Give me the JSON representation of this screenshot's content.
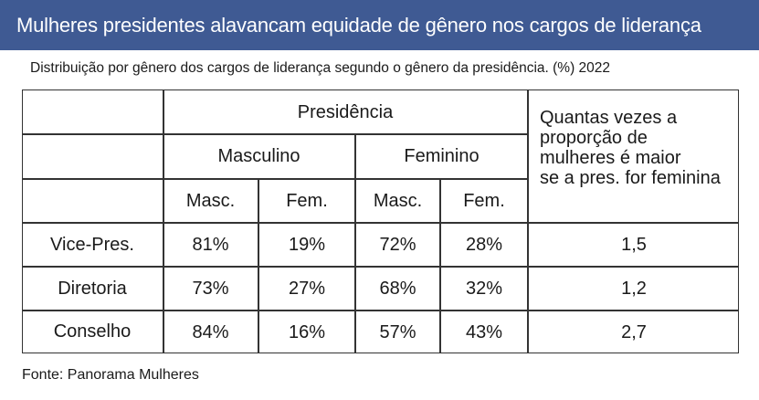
{
  "header": {
    "title": "Mulheres presidentes alavancam equidade de gênero nos cargos de liderança",
    "subtitle": "Distribuição por gênero dos cargos de liderança segundo o gênero da presidência. (%) 2022"
  },
  "footer": {
    "source": "Fonte: Panorama Mulheres"
  },
  "colors": {
    "banner": "#3f5a93",
    "banner_text": "#ffffff",
    "text": "#1a1a1a",
    "border": "#333333"
  },
  "chart_data": {
    "type": "table",
    "title": "Mulheres presidentes alavancam equidade de gênero nos cargos de liderança",
    "subtitle": "Distribuição por gênero dos cargos de liderança segundo o gênero da presidência. (%) 2022",
    "group_header": "Presidência",
    "groups": [
      "Masculino",
      "Feminino"
    ],
    "subcolumns": [
      "Masc.",
      "Fem.",
      "Masc.",
      "Fem."
    ],
    "ratio_header": "Quantas vezes a proporção de mulheres é maior se a pres. for feminina",
    "ratio_header_lines": [
      "Quantas vezes a",
      "proporção de",
      "mulheres é maior",
      "se a pres. for feminina"
    ],
    "rows": [
      {
        "label": "Vice-Pres.",
        "cells": [
          "81%",
          "19%",
          "72%",
          "28%"
        ],
        "ratio": "1,5"
      },
      {
        "label": "Diretoria",
        "cells": [
          "73%",
          "27%",
          "68%",
          "32%"
        ],
        "ratio": "1,2"
      },
      {
        "label": "Conselho",
        "cells": [
          "84%",
          "16%",
          "57%",
          "43%"
        ],
        "ratio": "2,7"
      }
    ]
  }
}
